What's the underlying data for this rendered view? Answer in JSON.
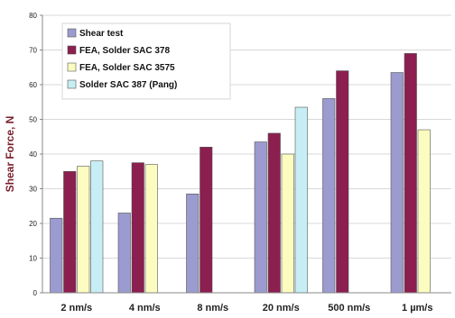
{
  "chart_data": {
    "type": "bar",
    "title": "",
    "xlabel": "",
    "ylabel": "Shear Force, N",
    "ylim": [
      0,
      80
    ],
    "yticks": [
      0,
      10,
      20,
      30,
      40,
      50,
      60,
      70,
      80
    ],
    "grid": true,
    "legend_position": "top-left",
    "categories": [
      "2 nm/s",
      "4 nm/s",
      "8 nm/s",
      "20 nm/s",
      "500 nm/s",
      "1 µm/s"
    ],
    "series": [
      {
        "name": "Shear test",
        "color": "#9b9bd0",
        "values": [
          21.5,
          23,
          28.5,
          43.5,
          56,
          63.5
        ]
      },
      {
        "name": "FEA, Solder SAC 378",
        "color": "#8b1f4f",
        "values": [
          35,
          37.5,
          42,
          46,
          64,
          69
        ]
      },
      {
        "name": "FEA, Solder SAC 3575",
        "color": "#fdfcc0",
        "values": [
          36.5,
          37,
          null,
          40,
          null,
          47
        ]
      },
      {
        "name": "Solder SAC 387 (Pang)",
        "color": "#c6eef4",
        "values": [
          38,
          null,
          null,
          53.5,
          null,
          null
        ]
      }
    ]
  }
}
